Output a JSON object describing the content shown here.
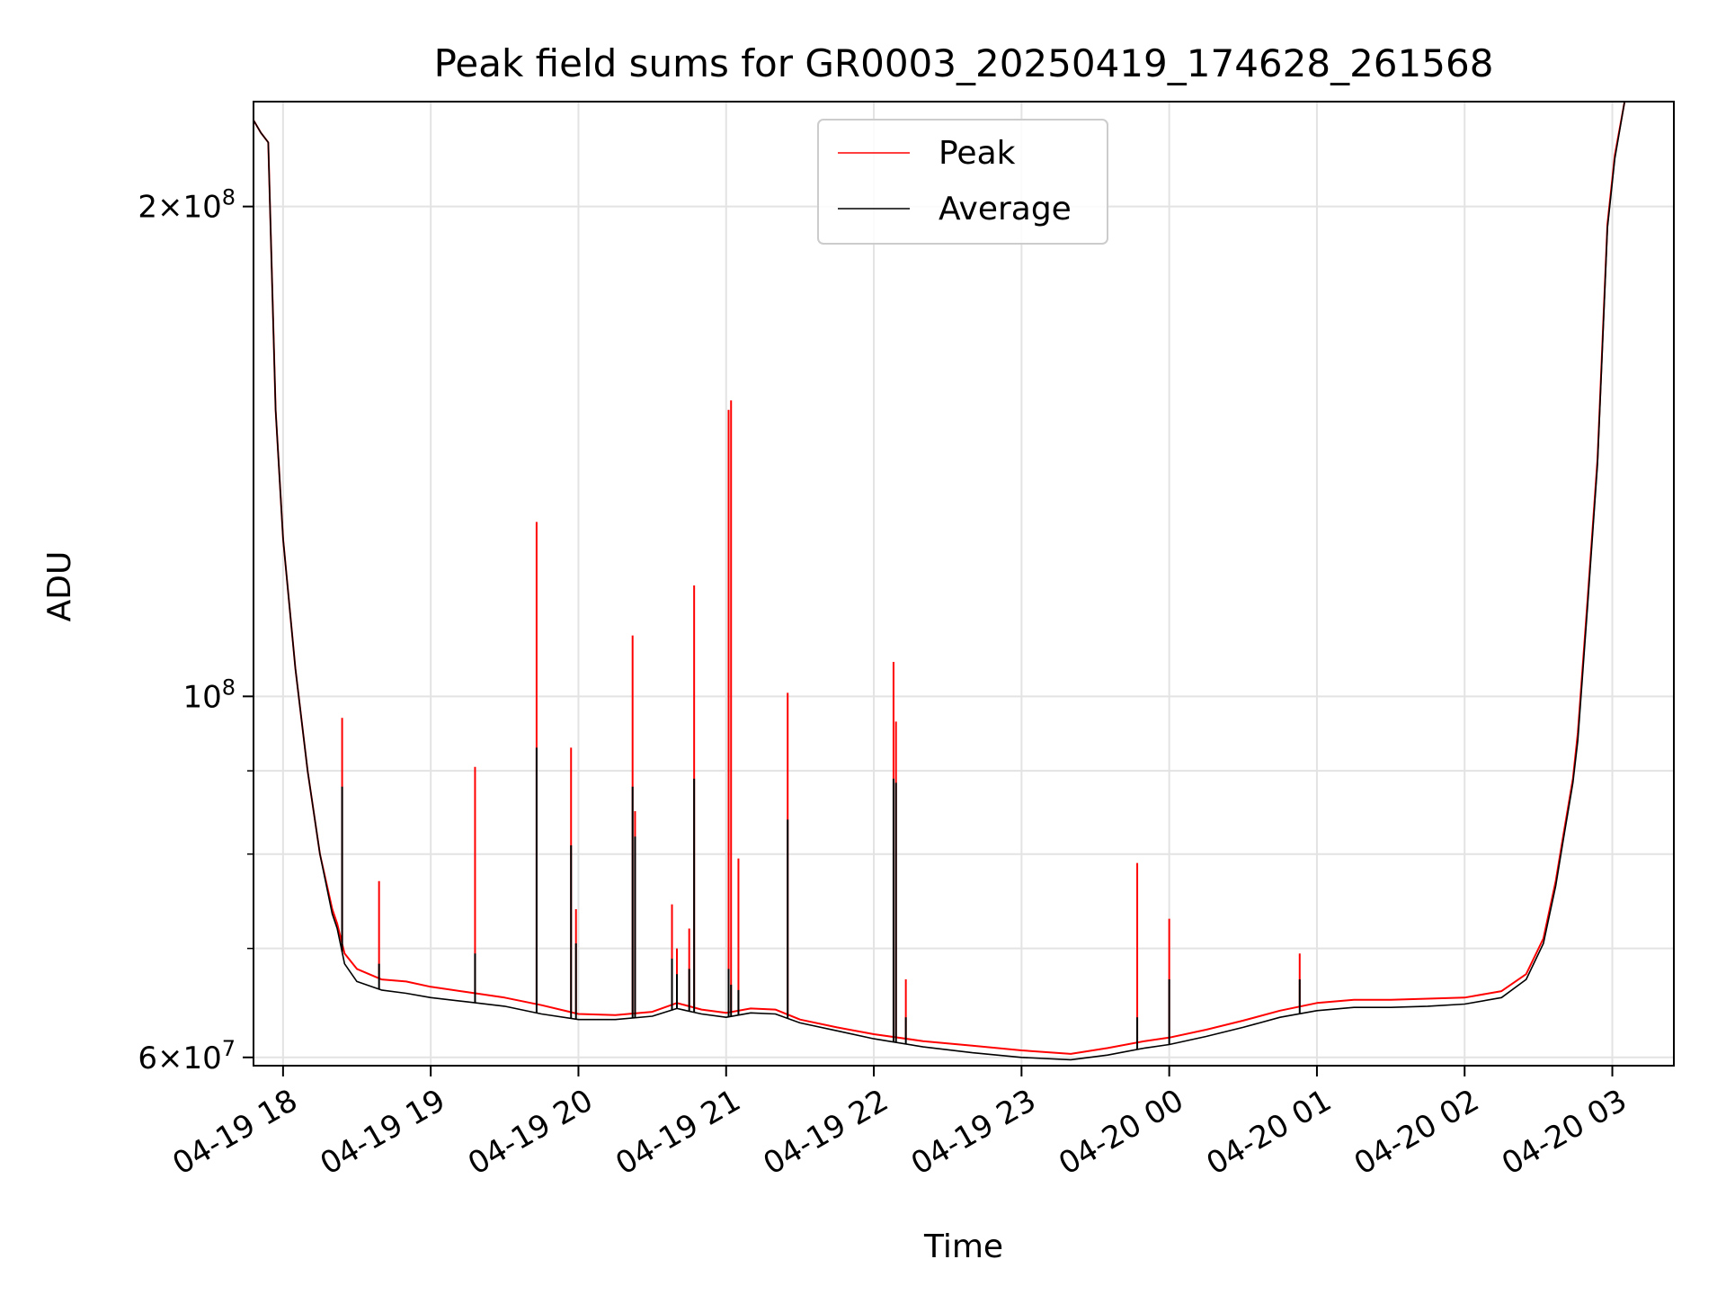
{
  "chart_data": {
    "type": "line",
    "title": "Peak field sums for GR0003_20250419_174628_261568",
    "xlabel": "Time",
    "ylabel": "ADU",
    "yscale": "log",
    "ylim": [
      59300000,
      232000000
    ],
    "xlim": [
      "2025-04-19 17:48",
      "2025-04-20 03:25"
    ],
    "grid": true,
    "legend_position": "top-center",
    "x_ticks": [
      {
        "t": "2025-04-19 18:00",
        "label": "04-19 18"
      },
      {
        "t": "2025-04-19 19:00",
        "label": "04-19 19"
      },
      {
        "t": "2025-04-19 20:00",
        "label": "04-19 20"
      },
      {
        "t": "2025-04-19 21:00",
        "label": "04-19 21"
      },
      {
        "t": "2025-04-19 22:00",
        "label": "04-19 22"
      },
      {
        "t": "2025-04-19 23:00",
        "label": "04-19 23"
      },
      {
        "t": "2025-04-20 00:00",
        "label": "04-20 00"
      },
      {
        "t": "2025-04-20 01:00",
        "label": "04-20 01"
      },
      {
        "t": "2025-04-20 02:00",
        "label": "04-20 02"
      },
      {
        "t": "2025-04-20 03:00",
        "label": "04-20 03"
      }
    ],
    "y_ticks": [
      {
        "value": 60000000,
        "mantissa": "6",
        "exp": "7"
      },
      {
        "value": 100000000,
        "mantissa": "",
        "exp": "8"
      },
      {
        "value": 200000000,
        "mantissa": "2",
        "exp": "8"
      }
    ],
    "y_minor_ticks": [
      70000000,
      80000000,
      90000000
    ],
    "series": [
      {
        "name": "Peak",
        "color": "#ff0000",
        "points": [
          [
            "2025-04-19 17:48",
            226000000
          ],
          [
            "2025-04-19 17:51",
            222000000
          ],
          [
            "2025-04-19 17:54",
            219000000
          ],
          [
            "2025-04-19 17:57",
            150000000
          ],
          [
            "2025-04-19 18:00",
            125000000
          ],
          [
            "2025-04-19 18:05",
            104000000
          ],
          [
            "2025-04-19 18:10",
            90000000
          ],
          [
            "2025-04-19 18:15",
            80000000
          ],
          [
            "2025-04-19 18:20",
            74000000
          ],
          [
            "2025-04-19 18:22",
            72500000
          ],
          [
            "2025-04-19 18:25",
            69500000
          ],
          [
            "2025-04-19 18:30",
            68000000
          ],
          [
            "2025-04-19 18:40",
            67000000
          ],
          [
            "2025-04-19 18:50",
            66800000
          ],
          [
            "2025-04-19 19:00",
            66300000
          ],
          [
            "2025-04-19 19:15",
            65800000
          ],
          [
            "2025-04-19 19:30",
            65300000
          ],
          [
            "2025-04-19 19:45",
            64600000
          ],
          [
            "2025-04-19 20:00",
            63800000
          ],
          [
            "2025-04-19 20:15",
            63700000
          ],
          [
            "2025-04-19 20:30",
            64000000
          ],
          [
            "2025-04-19 20:40",
            64800000
          ],
          [
            "2025-04-19 20:50",
            64200000
          ],
          [
            "2025-04-19 21:00",
            63900000
          ],
          [
            "2025-04-19 21:10",
            64300000
          ],
          [
            "2025-04-19 21:20",
            64200000
          ],
          [
            "2025-04-19 21:30",
            63300000
          ],
          [
            "2025-04-19 21:45",
            62600000
          ],
          [
            "2025-04-19 22:00",
            62000000
          ],
          [
            "2025-04-19 22:20",
            61400000
          ],
          [
            "2025-04-19 22:40",
            61000000
          ],
          [
            "2025-04-19 23:00",
            60600000
          ],
          [
            "2025-04-19 23:20",
            60300000
          ],
          [
            "2025-04-19 23:35",
            60800000
          ],
          [
            "2025-04-19 23:50",
            61400000
          ],
          [
            "2025-04-20 00:00",
            61700000
          ],
          [
            "2025-04-20 00:15",
            62400000
          ],
          [
            "2025-04-20 00:30",
            63200000
          ],
          [
            "2025-04-20 00:45",
            64100000
          ],
          [
            "2025-04-20 01:00",
            64800000
          ],
          [
            "2025-04-20 01:15",
            65100000
          ],
          [
            "2025-04-20 01:30",
            65100000
          ],
          [
            "2025-04-20 01:45",
            65200000
          ],
          [
            "2025-04-20 02:00",
            65300000
          ],
          [
            "2025-04-20 02:15",
            65900000
          ],
          [
            "2025-04-20 02:25",
            67500000
          ],
          [
            "2025-04-20 02:32",
            71000000
          ],
          [
            "2025-04-20 02:37",
            77000000
          ],
          [
            "2025-04-20 02:40",
            82000000
          ],
          [
            "2025-04-20 02:44",
            89000000
          ],
          [
            "2025-04-20 02:46",
            95000000
          ],
          [
            "2025-04-20 02:50",
            115000000
          ],
          [
            "2025-04-20 02:54",
            140000000
          ],
          [
            "2025-04-20 02:58",
            195000000
          ],
          [
            "2025-04-20 03:01",
            215000000
          ],
          [
            "2025-04-20 03:05",
            232000000
          ],
          [
            "2025-04-20 03:11",
            232000000
          ]
        ],
        "spikes": [
          [
            "2025-04-19 18:24",
            97000000
          ],
          [
            "2025-04-19 18:39",
            77000000
          ],
          [
            "2025-04-19 19:18",
            90500000
          ],
          [
            "2025-04-19 19:43",
            128000000
          ],
          [
            "2025-04-19 19:57",
            93000000
          ],
          [
            "2025-04-19 19:59",
            74000000
          ],
          [
            "2025-04-19 20:22",
            109000000
          ],
          [
            "2025-04-19 20:23",
            85000000
          ],
          [
            "2025-04-19 20:38",
            74500000
          ],
          [
            "2025-04-19 20:40",
            70000000
          ],
          [
            "2025-04-19 20:45",
            72000000
          ],
          [
            "2025-04-19 20:47",
            117000000
          ],
          [
            "2025-04-19 21:01",
            150000000
          ],
          [
            "2025-04-19 21:02",
            152000000
          ],
          [
            "2025-04-19 21:05",
            79500000
          ],
          [
            "2025-04-19 21:25",
            100500000
          ],
          [
            "2025-04-19 22:08",
            105000000
          ],
          [
            "2025-04-19 22:09",
            96500000
          ],
          [
            "2025-04-19 22:13",
            67000000
          ],
          [
            "2025-04-19 23:47",
            79000000
          ],
          [
            "2025-04-20 00:00",
            73000000
          ],
          [
            "2025-04-20 00:53",
            69500000
          ]
        ]
      },
      {
        "name": "Average",
        "color": "#000000",
        "points": [
          [
            "2025-04-19 17:48",
            226000000
          ],
          [
            "2025-04-19 17:51",
            222000000
          ],
          [
            "2025-04-19 17:54",
            219000000
          ],
          [
            "2025-04-19 17:57",
            150000000
          ],
          [
            "2025-04-19 18:00",
            125000000
          ],
          [
            "2025-04-19 18:05",
            104000000
          ],
          [
            "2025-04-19 18:10",
            90000000
          ],
          [
            "2025-04-19 18:15",
            80000000
          ],
          [
            "2025-04-19 18:20",
            73500000
          ],
          [
            "2025-04-19 18:22",
            72000000
          ],
          [
            "2025-04-19 18:25",
            68500000
          ],
          [
            "2025-04-19 18:30",
            66800000
          ],
          [
            "2025-04-19 18:40",
            66000000
          ],
          [
            "2025-04-19 18:50",
            65700000
          ],
          [
            "2025-04-19 19:00",
            65300000
          ],
          [
            "2025-04-19 19:15",
            64900000
          ],
          [
            "2025-04-19 19:30",
            64500000
          ],
          [
            "2025-04-19 19:45",
            63800000
          ],
          [
            "2025-04-19 20:00",
            63300000
          ],
          [
            "2025-04-19 20:15",
            63300000
          ],
          [
            "2025-04-19 20:30",
            63600000
          ],
          [
            "2025-04-19 20:40",
            64300000
          ],
          [
            "2025-04-19 20:50",
            63800000
          ],
          [
            "2025-04-19 21:00",
            63500000
          ],
          [
            "2025-04-19 21:10",
            63900000
          ],
          [
            "2025-04-19 21:20",
            63800000
          ],
          [
            "2025-04-19 21:30",
            63000000
          ],
          [
            "2025-04-19 21:45",
            62300000
          ],
          [
            "2025-04-19 22:00",
            61600000
          ],
          [
            "2025-04-19 22:20",
            60900000
          ],
          [
            "2025-04-19 22:40",
            60400000
          ],
          [
            "2025-04-19 23:00",
            60000000
          ],
          [
            "2025-04-19 23:20",
            59800000
          ],
          [
            "2025-04-19 23:35",
            60200000
          ],
          [
            "2025-04-19 23:50",
            60800000
          ],
          [
            "2025-04-20 00:00",
            61100000
          ],
          [
            "2025-04-20 00:15",
            61800000
          ],
          [
            "2025-04-20 00:30",
            62600000
          ],
          [
            "2025-04-20 00:45",
            63500000
          ],
          [
            "2025-04-20 01:00",
            64100000
          ],
          [
            "2025-04-20 01:15",
            64400000
          ],
          [
            "2025-04-20 01:30",
            64400000
          ],
          [
            "2025-04-20 01:45",
            64500000
          ],
          [
            "2025-04-20 02:00",
            64700000
          ],
          [
            "2025-04-20 02:15",
            65300000
          ],
          [
            "2025-04-20 02:25",
            67000000
          ],
          [
            "2025-04-20 02:32",
            70500000
          ],
          [
            "2025-04-20 02:37",
            76500000
          ],
          [
            "2025-04-20 02:40",
            81500000
          ],
          [
            "2025-04-20 02:44",
            88500000
          ],
          [
            "2025-04-20 02:46",
            94000000
          ],
          [
            "2025-04-20 02:50",
            114000000
          ],
          [
            "2025-04-20 02:54",
            139000000
          ],
          [
            "2025-04-20 02:58",
            194000000
          ],
          [
            "2025-04-20 03:01",
            214000000
          ],
          [
            "2025-04-20 03:05",
            232000000
          ],
          [
            "2025-04-20 03:11",
            232000000
          ]
        ],
        "spikes": [
          [
            "2025-04-19 18:24",
            88000000
          ],
          [
            "2025-04-19 18:39",
            68500000
          ],
          [
            "2025-04-19 19:18",
            69500000
          ],
          [
            "2025-04-19 19:43",
            93000000
          ],
          [
            "2025-04-19 19:57",
            81000000
          ],
          [
            "2025-04-19 19:59",
            70500000
          ],
          [
            "2025-04-19 20:22",
            88000000
          ],
          [
            "2025-04-19 20:23",
            82000000
          ],
          [
            "2025-04-19 20:38",
            69000000
          ],
          [
            "2025-04-19 20:40",
            67500000
          ],
          [
            "2025-04-19 20:45",
            68000000
          ],
          [
            "2025-04-19 20:47",
            89000000
          ],
          [
            "2025-04-19 21:01",
            68000000
          ],
          [
            "2025-04-19 21:02",
            66500000
          ],
          [
            "2025-04-19 21:05",
            66000000
          ],
          [
            "2025-04-19 21:25",
            84000000
          ],
          [
            "2025-04-19 22:08",
            89000000
          ],
          [
            "2025-04-19 22:09",
            88500000
          ],
          [
            "2025-04-19 22:13",
            63500000
          ],
          [
            "2025-04-19 23:47",
            63500000
          ],
          [
            "2025-04-20 00:00",
            67000000
          ],
          [
            "2025-04-20 00:53",
            67000000
          ]
        ]
      }
    ]
  }
}
